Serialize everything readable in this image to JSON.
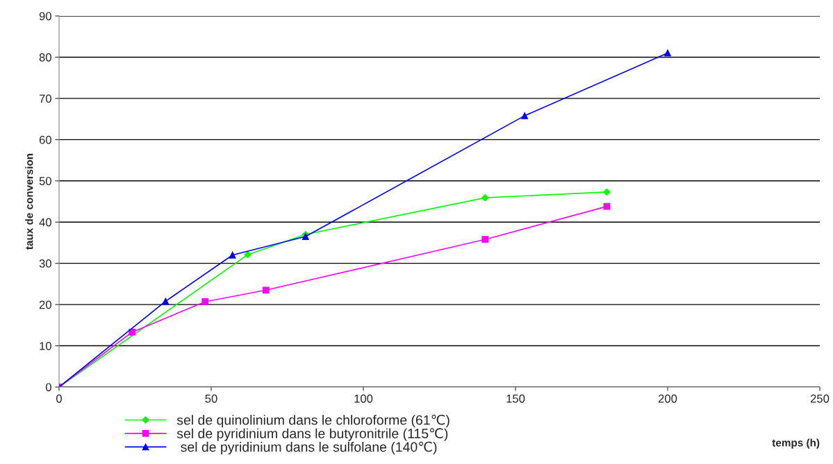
{
  "chart_data": {
    "type": "line",
    "xlabel": "temps (h)",
    "ylabel": "taux de conversion",
    "xlim": [
      0,
      250
    ],
    "xticks": [
      0,
      50,
      100,
      150,
      200,
      250
    ],
    "ylim": [
      0,
      90
    ],
    "yticks": [
      0,
      10,
      20,
      30,
      40,
      50,
      60,
      70,
      80,
      90
    ],
    "grid": "y",
    "legend": "bottom left",
    "series": [
      {
        "name": "sel de quinolinium dans le chloroforme (61℃)",
        "color": "#00ff00",
        "marker": "diamond",
        "x": [
          0,
          62,
          81,
          140,
          180
        ],
        "values": [
          0,
          32.1,
          37,
          45.9,
          47.3
        ]
      },
      {
        "name": "sel de pyridinium dans le butyronitrile (115℃)",
        "color": "#ff00ff",
        "marker": "square",
        "x": [
          0,
          24,
          48,
          68,
          140,
          180
        ],
        "values": [
          0,
          13.3,
          20.7,
          23.5,
          35.8,
          43.8
        ]
      },
      {
        "name": " sel de pyridinium dans le sulfolane (140℃)",
        "color": "#0000ff",
        "marker": "triangle",
        "x": [
          0,
          35,
          57,
          81,
          153,
          200
        ],
        "values": [
          0,
          20.8,
          32,
          36.5,
          65.8,
          81
        ]
      }
    ]
  }
}
